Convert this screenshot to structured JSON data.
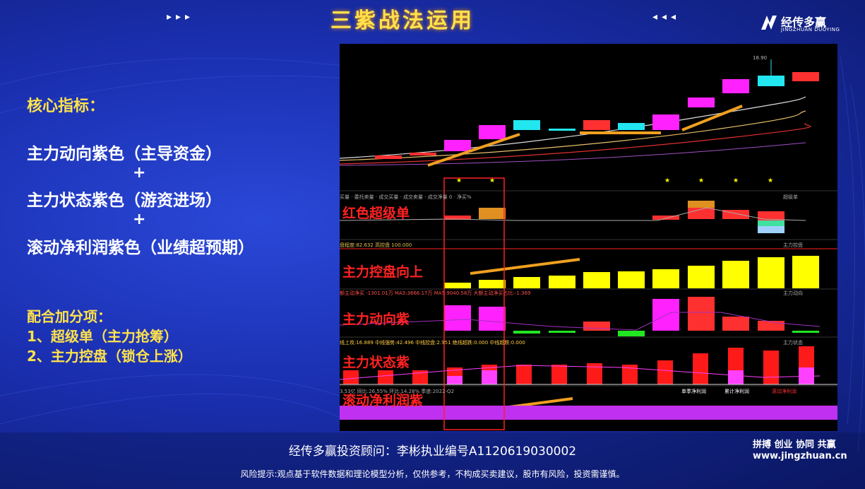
{
  "header": {
    "title": "三紫战法运用",
    "left_arrows": "▸▸▸",
    "right_arrows": "◂◂◂"
  },
  "logo": {
    "name": "经传多赢",
    "sub": "JINGZHUAN DUOYING"
  },
  "left_panel": {
    "core_heading": "核心指标：",
    "lines": [
      "主力动向紫色（主导资金）",
      "主力状态紫色（游资进场）",
      "滚动净利润紫色（业绩超预期）"
    ],
    "plus": "+",
    "bonus_heading": "配合加分项：",
    "bonus_items": [
      "1、超级单（主力抢筹）",
      "2、主力控盘（锁仓上涨）"
    ]
  },
  "chart": {
    "price_label": "18.90",
    "panels": [
      {
        "label": "红色超级单",
        "header": "买量  · 委托卖量 · 成交买量 · 成交卖量 · 成交净量 0  · 净买%",
        "name": "超级单"
      },
      {
        "label": "主力控盘向上",
        "header": "盘程度:82.632   高控盘 100.000",
        "name": "主力控盘"
      },
      {
        "label": "主力动向紫",
        "header": "额主动净买 -1301.01万  MA3:3666.17万  MA5:9040.58万  大额主动净买占比:-1.369",
        "name": "主力动向"
      },
      {
        "label": "主力状态紫",
        "header": "线上攻:16.889  中线强势:42.496  中线控盘:2.951  绝线超跌:0.000  中线超跌:0.000",
        "name": "主力状态"
      },
      {
        "label": "滚动净利润紫",
        "header": "3.53亿  同比:26.55%  环比:14.28%  季度:2022-Q2",
        "name": "滚动净利润",
        "tabs": [
          "单季净利润",
          "累计净利润",
          "滚动净利润"
        ]
      }
    ]
  },
  "footer": {
    "advisor": "经传多赢投资顾问：李彬执业编号A1120619030002",
    "risk": "风险提示:观点基于软件数据和理论模型分析，仅供参考，不构成买卖建议，股市有风险，投资需谨慎。",
    "slogan": "拼搏 创业 协同 共赢",
    "site": "www.jingzhuan.cn"
  },
  "colors": {
    "accent": "#ffe24a",
    "purple": "#ff22ff",
    "red": "#ff2222",
    "yellow": "#ffff00"
  }
}
